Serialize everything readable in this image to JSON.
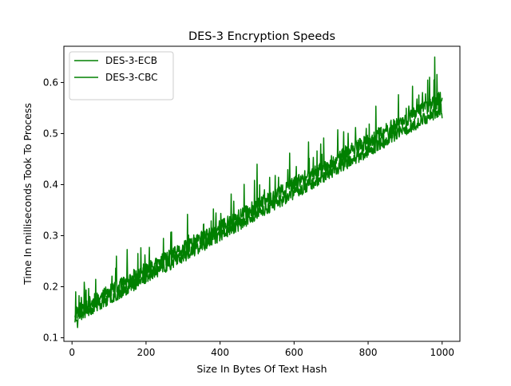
{
  "chart_data": {
    "type": "line",
    "title": "DES-3 Encryption Speeds",
    "xlabel": "Size In Bytes Of Text Hash",
    "ylabel": "Time In milliseconds Took To Process",
    "xlim": [
      -22,
      1048
    ],
    "ylim": [
      0.093,
      0.671
    ],
    "x_ticks": [
      0,
      200,
      400,
      600,
      800,
      1000
    ],
    "y_ticks": [
      0.1,
      0.2,
      0.3,
      0.4,
      0.5,
      0.6
    ],
    "grid": false,
    "legend_position": "upper-left",
    "x_range": [
      8,
      1000
    ],
    "series": [
      {
        "name": "DES-3-ECB",
        "color": "#008000",
        "trend": {
          "start": 0.145,
          "end": 0.565,
          "noise": 0.03,
          "seed": 11
        },
        "key_points": [
          [
            8,
            0.14
          ],
          [
            10,
            0.19
          ],
          [
            120,
            0.26
          ],
          [
            500,
            0.44
          ],
          [
            520,
            0.39
          ],
          [
            700,
            0.43
          ],
          [
            800,
            0.47
          ],
          [
            980,
            0.65
          ],
          [
            1000,
            0.57
          ]
        ]
      },
      {
        "name": "DES-3-CBC",
        "color": "#008000",
        "trend": {
          "start": 0.135,
          "end": 0.545,
          "noise": 0.025,
          "seed": 23
        },
        "key_points": [
          [
            8,
            0.13
          ],
          [
            15,
            0.12
          ],
          [
            300,
            0.28
          ],
          [
            600,
            0.39
          ],
          [
            900,
            0.5
          ],
          [
            1000,
            0.53
          ]
        ]
      }
    ]
  }
}
